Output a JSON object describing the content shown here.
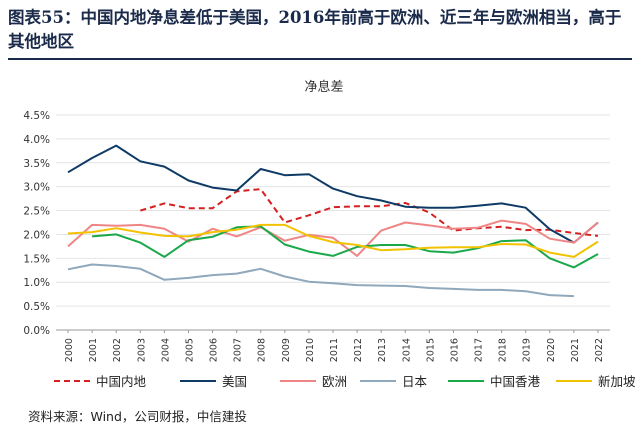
{
  "figure": {
    "title": "图表55：中国内地净息差低于美国，2016年前高于欧洲、近三年与欧洲相当，高于其他地区",
    "source": "资料来源：Wind，公司财报，中信建投"
  },
  "chart_data": {
    "type": "line",
    "title": "净息差",
    "xlabel": "",
    "ylabel": "",
    "x": [
      "2000",
      "2001",
      "2002",
      "2003",
      "2004",
      "2005",
      "2006",
      "2007",
      "2008",
      "2009",
      "2010",
      "2011",
      "2012",
      "2013",
      "2014",
      "2015",
      "2016",
      "2017",
      "2018",
      "2019",
      "2020",
      "2021",
      "2022"
    ],
    "ylim": [
      0,
      4.5
    ],
    "yticks": [
      "0.0%",
      "0.5%",
      "1.0%",
      "1.5%",
      "2.0%",
      "2.5%",
      "3.0%",
      "3.5%",
      "4.0%",
      "4.5%"
    ],
    "legend_position": "bottom",
    "series": [
      {
        "name": "中国内地",
        "color": "#d42020",
        "dashed": true,
        "values": [
          null,
          null,
          null,
          2.5,
          2.65,
          2.55,
          2.55,
          2.9,
          2.95,
          2.25,
          2.4,
          2.57,
          2.59,
          2.59,
          2.66,
          2.46,
          2.08,
          2.13,
          2.16,
          2.09,
          2.1,
          2.03,
          1.97
        ]
      },
      {
        "name": "美国",
        "color": "#0e3a66",
        "dashed": false,
        "values": [
          3.3,
          3.6,
          3.86,
          3.53,
          3.42,
          3.13,
          2.98,
          2.92,
          3.37,
          3.24,
          3.26,
          2.96,
          2.8,
          2.71,
          2.58,
          2.56,
          2.56,
          2.6,
          2.65,
          2.56,
          2.11,
          1.83,
          2.25
        ]
      },
      {
        "name": "欧洲",
        "color": "#f08585",
        "dashed": false,
        "values": [
          1.75,
          2.2,
          2.18,
          2.2,
          2.12,
          1.85,
          2.12,
          1.96,
          2.15,
          1.87,
          1.99,
          1.93,
          1.55,
          2.08,
          2.25,
          2.19,
          2.12,
          2.14,
          2.29,
          2.22,
          1.91,
          1.83,
          2.25
        ]
      },
      {
        "name": "日本",
        "color": "#8fa8bc",
        "dashed": false,
        "values": [
          1.27,
          1.37,
          1.34,
          1.28,
          1.05,
          1.09,
          1.15,
          1.18,
          1.28,
          1.12,
          1.01,
          0.98,
          0.94,
          0.93,
          0.92,
          0.88,
          0.86,
          0.84,
          0.84,
          0.81,
          0.73,
          0.71,
          null
        ]
      },
      {
        "name": "中国香港",
        "color": "#1aa84a",
        "dashed": false,
        "values": [
          null,
          1.96,
          2.0,
          1.83,
          1.53,
          1.88,
          1.95,
          2.15,
          2.17,
          1.79,
          1.64,
          1.55,
          1.74,
          1.78,
          1.78,
          1.65,
          1.62,
          1.71,
          1.86,
          1.88,
          1.5,
          1.31,
          1.59
        ]
      },
      {
        "name": "新加坡",
        "color": "#f2c200",
        "dashed": false,
        "values": [
          2.02,
          2.05,
          2.13,
          2.04,
          1.97,
          1.96,
          2.05,
          2.1,
          2.2,
          2.2,
          1.97,
          1.84,
          1.78,
          1.67,
          1.69,
          1.72,
          1.73,
          1.73,
          1.8,
          1.79,
          1.62,
          1.53,
          1.85
        ]
      }
    ]
  }
}
